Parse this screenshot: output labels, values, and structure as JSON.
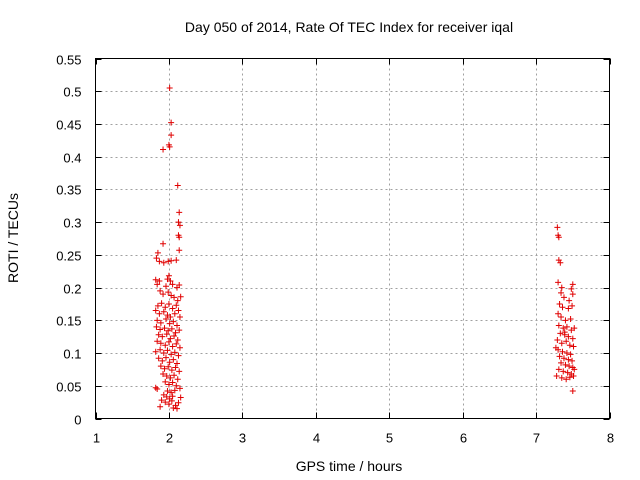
{
  "chart_data": {
    "type": "scatter",
    "title": "Day 050 of 2014, Rate Of TEC Index for receiver iqal",
    "xlabel": "GPS time / hours",
    "ylabel": "ROTI / TECUs",
    "xlim": [
      1,
      8
    ],
    "ylim": [
      0,
      0.55
    ],
    "xticks": [
      1,
      2,
      3,
      4,
      5,
      6,
      7,
      8
    ],
    "xtick_labels": [
      "1",
      "2",
      "3",
      "4",
      "5",
      "6",
      "7",
      "8"
    ],
    "yticks": [
      0,
      0.05,
      0.1,
      0.15,
      0.2,
      0.25,
      0.3,
      0.35,
      0.4,
      0.45,
      0.5,
      0.55
    ],
    "ytick_labels": [
      "0",
      "0.05",
      "0.1",
      "0.15",
      "0.2",
      "0.25",
      "0.3",
      "0.35",
      "0.4",
      "0.45",
      "0.5",
      "0.55"
    ],
    "grid": true,
    "marker": "+",
    "color": "#e00000",
    "series": [
      {
        "name": "ROTI",
        "points": [
          [
            2.01,
            0.505
          ],
          [
            2.03,
            0.452
          ],
          [
            2.03,
            0.433
          ],
          [
            2.0,
            0.418
          ],
          [
            2.01,
            0.415
          ],
          [
            1.92,
            0.411
          ],
          [
            2.12,
            0.356
          ],
          [
            2.14,
            0.315
          ],
          [
            2.13,
            0.3
          ],
          [
            2.15,
            0.295
          ],
          [
            2.13,
            0.28
          ],
          [
            2.14,
            0.277
          ],
          [
            1.92,
            0.267
          ],
          [
            2.14,
            0.257
          ],
          [
            1.85,
            0.253
          ],
          [
            1.83,
            0.245
          ],
          [
            1.87,
            0.24
          ],
          [
            1.93,
            0.238
          ],
          [
            2.03,
            0.241
          ],
          [
            1.99,
            0.24
          ],
          [
            2.1,
            0.242
          ],
          [
            2.0,
            0.218
          ],
          [
            1.82,
            0.212
          ],
          [
            1.87,
            0.21
          ],
          [
            1.84,
            0.205
          ],
          [
            1.98,
            0.213
          ],
          [
            2.02,
            0.21
          ],
          [
            2.05,
            0.205
          ],
          [
            1.96,
            0.202
          ],
          [
            2.11,
            0.2
          ],
          [
            2.14,
            0.204
          ],
          [
            1.88,
            0.195
          ],
          [
            1.92,
            0.19
          ],
          [
            1.99,
            0.193
          ],
          [
            2.03,
            0.188
          ],
          [
            2.07,
            0.185
          ],
          [
            2.12,
            0.18
          ],
          [
            2.16,
            0.186
          ],
          [
            1.85,
            0.172
          ],
          [
            1.9,
            0.176
          ],
          [
            1.95,
            0.17
          ],
          [
            2.0,
            0.175
          ],
          [
            2.05,
            0.168
          ],
          [
            2.1,
            0.173
          ],
          [
            2.13,
            0.165
          ],
          [
            1.82,
            0.165
          ],
          [
            1.87,
            0.16
          ],
          [
            1.93,
            0.163
          ],
          [
            1.98,
            0.158
          ],
          [
            2.02,
            0.155
          ],
          [
            2.08,
            0.16
          ],
          [
            2.15,
            0.155
          ],
          [
            1.84,
            0.15
          ],
          [
            1.89,
            0.146
          ],
          [
            1.96,
            0.152
          ],
          [
            2.01,
            0.145
          ],
          [
            2.06,
            0.148
          ],
          [
            2.11,
            0.142
          ],
          [
            1.83,
            0.14
          ],
          [
            1.88,
            0.136
          ],
          [
            1.94,
            0.138
          ],
          [
            1.99,
            0.134
          ],
          [
            2.04,
            0.137
          ],
          [
            2.09,
            0.131
          ],
          [
            2.14,
            0.135
          ],
          [
            1.86,
            0.128
          ],
          [
            1.91,
            0.125
          ],
          [
            1.97,
            0.129
          ],
          [
            2.02,
            0.122
          ],
          [
            2.07,
            0.126
          ],
          [
            2.12,
            0.12
          ],
          [
            1.84,
            0.118
          ],
          [
            1.89,
            0.115
          ],
          [
            1.95,
            0.112
          ],
          [
            2.0,
            0.117
          ],
          [
            2.05,
            0.11
          ],
          [
            2.1,
            0.114
          ],
          [
            2.15,
            0.108
          ],
          [
            1.82,
            0.102
          ],
          [
            1.88,
            0.105
          ],
          [
            1.93,
            0.1
          ],
          [
            1.98,
            0.104
          ],
          [
            2.03,
            0.098
          ],
          [
            2.08,
            0.101
          ],
          [
            2.13,
            0.096
          ],
          [
            1.86,
            0.092
          ],
          [
            1.91,
            0.088
          ],
          [
            1.96,
            0.093
          ],
          [
            2.01,
            0.086
          ],
          [
            2.06,
            0.09
          ],
          [
            2.11,
            0.084
          ],
          [
            1.89,
            0.08
          ],
          [
            1.94,
            0.076
          ],
          [
            1.99,
            0.079
          ],
          [
            2.04,
            0.074
          ],
          [
            2.09,
            0.078
          ],
          [
            2.14,
            0.072
          ],
          [
            1.92,
            0.068
          ],
          [
            1.97,
            0.065
          ],
          [
            2.02,
            0.062
          ],
          [
            2.07,
            0.066
          ],
          [
            2.12,
            0.06
          ],
          [
            1.95,
            0.056
          ],
          [
            2.0,
            0.052
          ],
          [
            2.05,
            0.055
          ],
          [
            2.1,
            0.05
          ],
          [
            2.15,
            0.046
          ],
          [
            1.82,
            0.047
          ],
          [
            1.84,
            0.045
          ],
          [
            1.98,
            0.042
          ],
          [
            2.03,
            0.04
          ],
          [
            2.08,
            0.043
          ],
          [
            1.93,
            0.036
          ],
          [
            1.97,
            0.033
          ],
          [
            2.01,
            0.03
          ],
          [
            2.05,
            0.034
          ],
          [
            1.9,
            0.028
          ],
          [
            1.95,
            0.025
          ],
          [
            2.0,
            0.022
          ],
          [
            2.04,
            0.027
          ],
          [
            2.09,
            0.02
          ],
          [
            1.88,
            0.018
          ],
          [
            2.06,
            0.016
          ],
          [
            2.11,
            0.015
          ],
          [
            2.13,
            0.024
          ],
          [
            2.16,
            0.032
          ],
          [
            7.29,
            0.292
          ],
          [
            7.3,
            0.28
          ],
          [
            7.31,
            0.277
          ],
          [
            7.31,
            0.242
          ],
          [
            7.33,
            0.238
          ],
          [
            7.3,
            0.208
          ],
          [
            7.35,
            0.2
          ],
          [
            7.5,
            0.205
          ],
          [
            7.48,
            0.198
          ],
          [
            7.5,
            0.19
          ],
          [
            7.34,
            0.192
          ],
          [
            7.38,
            0.185
          ],
          [
            7.45,
            0.18
          ],
          [
            7.32,
            0.175
          ],
          [
            7.36,
            0.17
          ],
          [
            7.44,
            0.168
          ],
          [
            7.49,
            0.172
          ],
          [
            7.3,
            0.16
          ],
          [
            7.34,
            0.155
          ],
          [
            7.4,
            0.15
          ],
          [
            7.47,
            0.152
          ],
          [
            7.31,
            0.142
          ],
          [
            7.37,
            0.138
          ],
          [
            7.42,
            0.14
          ],
          [
            7.48,
            0.135
          ],
          [
            7.52,
            0.138
          ],
          [
            7.33,
            0.13
          ],
          [
            7.39,
            0.128
          ],
          [
            7.44,
            0.125
          ],
          [
            7.5,
            0.122
          ],
          [
            7.29,
            0.12
          ],
          [
            7.35,
            0.115
          ],
          [
            7.41,
            0.118
          ],
          [
            7.46,
            0.112
          ],
          [
            7.51,
            0.11
          ],
          [
            7.3,
            0.105
          ],
          [
            7.36,
            0.102
          ],
          [
            7.42,
            0.1
          ],
          [
            7.47,
            0.098
          ],
          [
            7.32,
            0.095
          ],
          [
            7.38,
            0.092
          ],
          [
            7.44,
            0.09
          ],
          [
            7.49,
            0.088
          ],
          [
            7.34,
            0.085
          ],
          [
            7.4,
            0.082
          ],
          [
            7.45,
            0.08
          ],
          [
            7.5,
            0.078
          ],
          [
            7.52,
            0.075
          ],
          [
            7.31,
            0.075
          ],
          [
            7.37,
            0.072
          ],
          [
            7.43,
            0.07
          ],
          [
            7.48,
            0.068
          ],
          [
            7.51,
            0.065
          ],
          [
            7.28,
            0.065
          ],
          [
            7.35,
            0.062
          ],
          [
            7.41,
            0.06
          ],
          [
            7.46,
            0.063
          ],
          [
            7.5,
            0.042
          ],
          [
            7.27,
            0.108
          ],
          [
            7.39,
            0.132
          ]
        ]
      }
    ]
  }
}
